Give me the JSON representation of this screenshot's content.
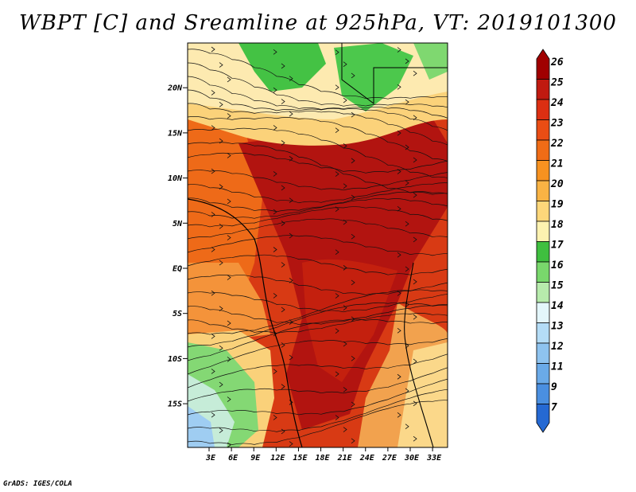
{
  "title": "WBPT [C] and Sreamline at 925hPa, VT: 2019101300",
  "credit": "GrADS: IGES/COLA",
  "map": {
    "lat_labels": [
      "20N",
      "15N",
      "10N",
      "5N",
      "EQ",
      "5S",
      "10S",
      "15S"
    ],
    "lat_values": [
      20,
      15,
      10,
      5,
      0,
      -5,
      -10,
      -15
    ],
    "lon_labels": [
      "3E",
      "6E",
      "9E",
      "12E",
      "15E",
      "18E",
      "21E",
      "24E",
      "27E",
      "30E",
      "33E"
    ],
    "lon_values": [
      3,
      6,
      9,
      12,
      15,
      18,
      21,
      24,
      27,
      30,
      33
    ],
    "variable": "wet-bulb potential temperature",
    "units": "C",
    "level": "925hPa",
    "overlay": "streamlines"
  },
  "colorbar": {
    "labels": [
      "26",
      "25",
      "24",
      "23",
      "22",
      "21",
      "20",
      "19",
      "18",
      "17",
      "16",
      "15",
      "14",
      "13",
      "12",
      "11",
      "9",
      "7"
    ],
    "colors": [
      "#a00000",
      "#c01a10",
      "#dc2f12",
      "#ea4d14",
      "#f06c16",
      "#f79220",
      "#f9b344",
      "#fdd77a",
      "#fdf2b0",
      "#3fbf3f",
      "#79d86c",
      "#b7ebac",
      "#e3f6fb",
      "#b4dcf6",
      "#8ec3ef",
      "#6aaae8",
      "#4a8fe0",
      "#2569d3"
    ]
  }
}
